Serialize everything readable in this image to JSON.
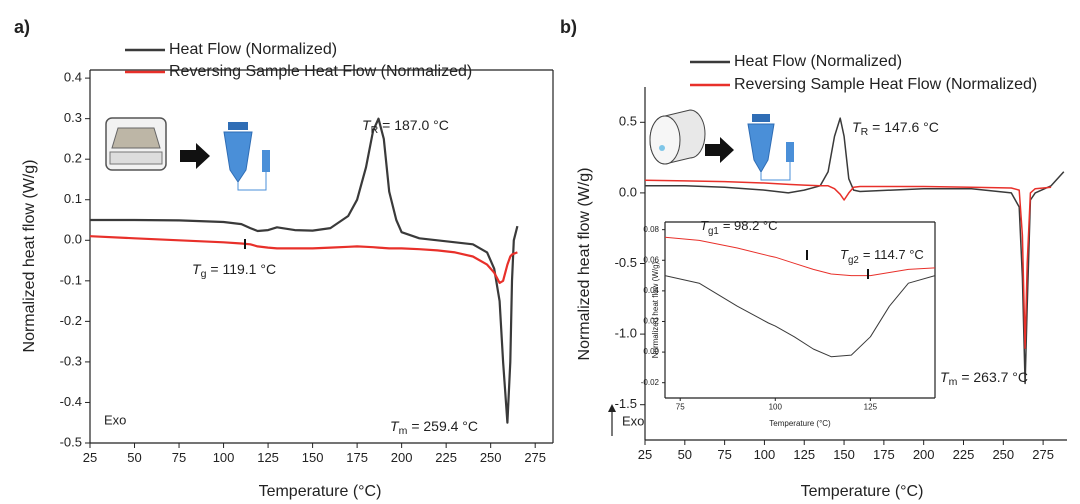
{
  "chart_data": [
    {
      "type": "line",
      "panel_label": "a)",
      "x_label": "Temperature (°C)",
      "y_label": "Normalized heat flow (W/g)",
      "xlim": [
        25,
        285
      ],
      "ylim": [
        -0.5,
        0.42
      ],
      "xticks": [
        25,
        50,
        75,
        100,
        125,
        150,
        175,
        200,
        225,
        250,
        275
      ],
      "yticks": [
        0.4,
        0.3,
        0.2,
        0.1,
        {
          "value": 0,
          "label": "0.0"
        },
        -0.1,
        -0.2,
        -0.3,
        -0.4,
        -0.5
      ],
      "x": [
        25,
        50,
        75,
        100,
        110,
        115,
        119.1,
        125,
        130,
        140,
        150,
        160,
        170,
        175,
        180,
        184,
        187,
        190,
        193,
        197,
        200,
        210,
        220,
        230,
        240,
        248,
        252,
        255,
        257,
        259.4,
        261,
        262,
        263,
        265
      ],
      "series": [
        {
          "name": "Heat Flow (Normalized)",
          "color": "#3a3a3a",
          "values": [
            0.05,
            0.05,
            0.049,
            0.045,
            0.04,
            0.03,
            0.023,
            0.025,
            0.032,
            0.025,
            0.024,
            0.03,
            0.06,
            0.1,
            0.18,
            0.27,
            0.3,
            0.25,
            0.12,
            0.05,
            0.02,
            0.005,
            0,
            -0.005,
            -0.01,
            -0.03,
            -0.07,
            -0.15,
            -0.3,
            -0.45,
            -0.3,
            -0.1,
            0.0,
            0.035
          ]
        },
        {
          "name": "Reversing Sample Heat Flow (Normalized)",
          "color": "#e8302a",
          "values": [
            0.01,
            0.005,
            0,
            -0.005,
            -0.008,
            -0.01,
            -0.015,
            -0.018,
            -0.02,
            -0.02,
            -0.02,
            -0.018,
            -0.016,
            -0.015,
            -0.016,
            -0.017,
            -0.018,
            -0.019,
            -0.02,
            -0.02,
            -0.02,
            -0.022,
            -0.025,
            -0.03,
            -0.04,
            -0.06,
            -0.08,
            -0.105,
            -0.1,
            -0.06,
            -0.04,
            -0.035,
            -0.033,
            -0.03
          ]
        }
      ],
      "annotations": [
        {
          "symbol": "T",
          "subscript": "R",
          "text": "= 187.0 °C"
        },
        {
          "symbol": "T",
          "subscript": "g",
          "text": "= 119.1 °C"
        },
        {
          "symbol": "T",
          "subscript": "m",
          "text": "= 259.4 °C"
        }
      ],
      "note": "Exo"
    },
    {
      "type": "line",
      "panel_label": "b)",
      "x_label": "Temperature (°C)",
      "y_label": "Normalized heat flow (W/g)",
      "xlim": [
        25,
        290
      ],
      "ylim": [
        -1.75,
        0.75
      ],
      "xticks": [
        25,
        50,
        75,
        100,
        125,
        150,
        175,
        200,
        225,
        250,
        275
      ],
      "yticks": [
        0.5,
        {
          "value": 0,
          "label": "0.0"
        },
        -0.5,
        {
          "value": -1,
          "label": "-1.0"
        },
        -1.5
      ],
      "x": [
        25,
        50,
        75,
        100,
        115,
        125,
        135,
        140,
        144,
        147.6,
        150,
        153,
        156,
        160,
        180,
        200,
        230,
        255,
        260,
        262,
        263.7,
        265,
        267,
        270,
        280,
        288
      ],
      "series": [
        {
          "name": "Heat Flow (Normalized)",
          "color": "#3a3a3a",
          "values": [
            0.05,
            0.05,
            0.04,
            0.02,
            0.0,
            0.02,
            0.05,
            0.15,
            0.4,
            0.53,
            0.4,
            0.1,
            0.02,
            0.01,
            0.02,
            0.03,
            0.03,
            0.0,
            -0.1,
            -0.6,
            -1.35,
            -0.8,
            -0.05,
            0.0,
            0.05,
            0.15
          ]
        },
        {
          "name": "Reversing Sample Heat Flow (Normalized)",
          "color": "#e8302a",
          "values": [
            0.09,
            0.085,
            0.08,
            0.07,
            0.06,
            0.055,
            0.05,
            0.05,
            0.03,
            -0.01,
            -0.05,
            0.0,
            0.04,
            0.045,
            0.045,
            0.045,
            0.04,
            0.035,
            0.02,
            -0.3,
            -1.1,
            -0.5,
            0.0,
            0.03,
            0.04,
            null
          ]
        }
      ],
      "annotations": [
        {
          "symbol": "T",
          "subscript": "R",
          "text": "= 147.6 °C"
        },
        {
          "symbol": "T",
          "subscript": "m",
          "text": "= 263.7 °C"
        }
      ],
      "note": "Exo"
    },
    {
      "type": "line",
      "x_label": "Temperature (°C)",
      "y_label": "Normalized heat flow (W/g)",
      "xlim": [
        71,
        142
      ],
      "ylim": [
        -0.03,
        0.085
      ],
      "xticks": [
        75,
        100,
        125
      ],
      "yticks": [
        0.08,
        0.06,
        0.04,
        0.02,
        {
          "value": 0,
          "label": "0.00"
        },
        -0.02
      ],
      "x": [
        71,
        80,
        90,
        98.2,
        100,
        105,
        110,
        114.7,
        120,
        125,
        130,
        135,
        142
      ],
      "series": [
        {
          "color": "#3a3a3a",
          "values": [
            0.05,
            0.045,
            0.03,
            0.019,
            0.017,
            0.01,
            0.002,
            -0.003,
            -0.002,
            0.01,
            0.03,
            0.045,
            0.05
          ]
        },
        {
          "color": "#e8302a",
          "values": [
            0.075,
            0.073,
            0.068,
            0.063,
            0.062,
            0.058,
            0.054,
            0.051,
            0.05,
            0.05,
            0.052,
            0.054,
            0.055
          ]
        }
      ],
      "annotations": [
        {
          "symbol": "T",
          "subscript": "g1",
          "text": "= 98.2 °C"
        },
        {
          "symbol": "T",
          "subscript": "g2",
          "text": "= 114.7 °C"
        }
      ]
    }
  ]
}
